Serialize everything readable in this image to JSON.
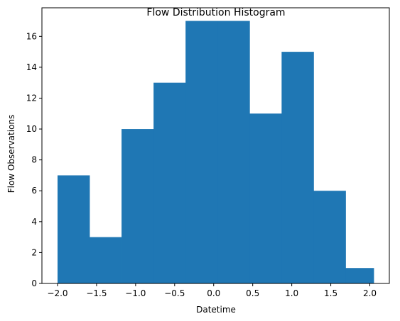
{
  "chart_data": {
    "type": "bar",
    "title": "Flow Distribution Histogram",
    "xlabel": "Datetime",
    "ylabel": "Flow Observations",
    "bin_edges": [
      -2.0,
      -1.59,
      -1.18,
      -0.77,
      -0.36,
      0.05,
      0.46,
      0.87,
      1.28,
      1.69,
      2.05
    ],
    "values": [
      7,
      3,
      10,
      13,
      17,
      17,
      11,
      15,
      6,
      1
    ],
    "xlim": [
      -2.2,
      2.25
    ],
    "ylim": [
      0,
      17.85
    ],
    "x_ticks": [
      -2.0,
      -1.5,
      -1.0,
      -0.5,
      0.0,
      0.5,
      1.0,
      1.5,
      2.0
    ],
    "x_tick_labels": [
      "−2.0",
      "−1.5",
      "−1.0",
      "−0.5",
      "0.0",
      "0.5",
      "1.0",
      "1.5",
      "2.0"
    ],
    "y_ticks": [
      0,
      2,
      4,
      6,
      8,
      10,
      12,
      14,
      16
    ],
    "y_tick_labels": [
      "0",
      "2",
      "4",
      "6",
      "8",
      "10",
      "12",
      "14",
      "16"
    ],
    "grid": false,
    "colors": {
      "bar": "#1f77b4",
      "axis": "#000000",
      "background": "#ffffff"
    }
  }
}
